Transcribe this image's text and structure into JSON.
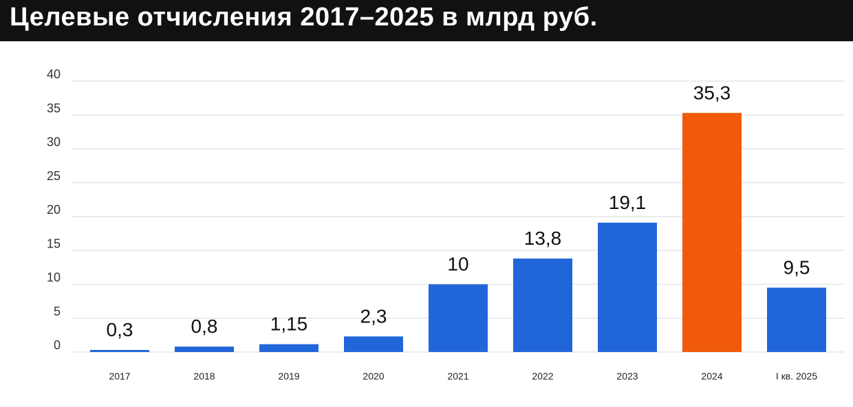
{
  "header": {
    "title": "Целевые отчисления 2017–2025 в млрд руб."
  },
  "colors": {
    "bar_default": "#2166d9",
    "bar_highlight": "#f05a0a",
    "grid": "#e2e5ea"
  },
  "chart_data": {
    "type": "bar",
    "title": "Целевые отчисления 2017–2025 в млрд руб.",
    "xlabel": "",
    "ylabel": "",
    "ylim": [
      0,
      40
    ],
    "yticks": [
      0,
      5,
      10,
      15,
      20,
      25,
      30,
      35,
      40
    ],
    "grid": true,
    "categories": [
      "2017",
      "2018",
      "2019",
      "2020",
      "2021",
      "2022",
      "2023",
      "2024",
      "I кв. 2025"
    ],
    "values": [
      0.3,
      0.8,
      1.15,
      2.3,
      10,
      13.8,
      19.1,
      35.3,
      9.5
    ],
    "value_labels": [
      "0,3",
      "0,8",
      "1,15",
      "2,3",
      "10",
      "13,8",
      "19,1",
      "35,3",
      "9,5"
    ],
    "highlight_index": 7
  }
}
